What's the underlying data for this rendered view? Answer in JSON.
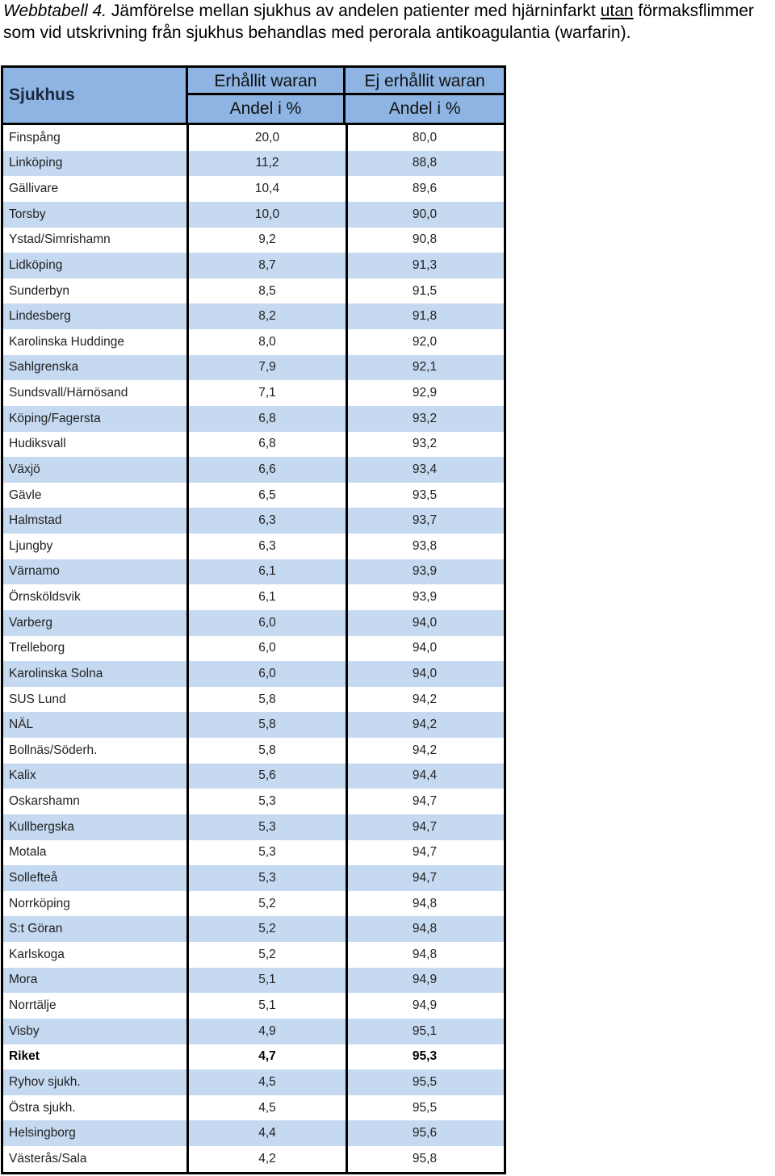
{
  "caption": {
    "prefix": "Webbtabell 4.",
    "part1": " Jämförelse mellan sjukhus av andelen patienter med hjärninfarkt ",
    "underlined": "utan",
    "part2": " förmaksflimmer som vid utskrivning från sjukhus behandlas med perorala antikoagulantia (warfarin)."
  },
  "table": {
    "col1_header": "Sjukhus",
    "col2_header": "Erhållit waran",
    "col3_header": "Ej erhållit waran",
    "col2_sub": "Andel i %",
    "col3_sub": "Andel i %",
    "rows": [
      {
        "name": "Finspång",
        "a": "20,0",
        "b": "80,0"
      },
      {
        "name": "Linköping",
        "a": "11,2",
        "b": "88,8"
      },
      {
        "name": "Gällivare",
        "a": "10,4",
        "b": "89,6"
      },
      {
        "name": "Torsby",
        "a": "10,0",
        "b": "90,0"
      },
      {
        "name": "Ystad/Simrishamn",
        "a": "9,2",
        "b": "90,8"
      },
      {
        "name": "Lidköping",
        "a": "8,7",
        "b": "91,3"
      },
      {
        "name": "Sunderbyn",
        "a": "8,5",
        "b": "91,5"
      },
      {
        "name": "Lindesberg",
        "a": "8,2",
        "b": "91,8"
      },
      {
        "name": "Karolinska Huddinge",
        "a": "8,0",
        "b": "92,0"
      },
      {
        "name": "Sahlgrenska",
        "a": "7,9",
        "b": "92,1"
      },
      {
        "name": "Sundsvall/Härnösand",
        "a": "7,1",
        "b": "92,9"
      },
      {
        "name": "Köping/Fagersta",
        "a": "6,8",
        "b": "93,2"
      },
      {
        "name": "Hudiksvall",
        "a": "6,8",
        "b": "93,2"
      },
      {
        "name": "Växjö",
        "a": "6,6",
        "b": "93,4"
      },
      {
        "name": "Gävle",
        "a": "6,5",
        "b": "93,5"
      },
      {
        "name": "Halmstad",
        "a": "6,3",
        "b": "93,7"
      },
      {
        "name": "Ljungby",
        "a": "6,3",
        "b": "93,8"
      },
      {
        "name": "Värnamo",
        "a": "6,1",
        "b": "93,9"
      },
      {
        "name": "Örnsköldsvik",
        "a": "6,1",
        "b": "93,9"
      },
      {
        "name": "Varberg",
        "a": "6,0",
        "b": "94,0"
      },
      {
        "name": "Trelleborg",
        "a": "6,0",
        "b": "94,0"
      },
      {
        "name": "Karolinska Solna",
        "a": "6,0",
        "b": "94,0"
      },
      {
        "name": "SUS Lund",
        "a": "5,8",
        "b": "94,2"
      },
      {
        "name": "NÄL",
        "a": "5,8",
        "b": "94,2"
      },
      {
        "name": "Bollnäs/Söderh.",
        "a": "5,8",
        "b": "94,2"
      },
      {
        "name": "Kalix",
        "a": "5,6",
        "b": "94,4"
      },
      {
        "name": "Oskarshamn",
        "a": "5,3",
        "b": "94,7"
      },
      {
        "name": "Kullbergska",
        "a": "5,3",
        "b": "94,7"
      },
      {
        "name": "Motala",
        "a": "5,3",
        "b": "94,7"
      },
      {
        "name": "Sollefteå",
        "a": "5,3",
        "b": "94,7"
      },
      {
        "name": "Norrköping",
        "a": "5,2",
        "b": "94,8"
      },
      {
        "name": "S:t Göran",
        "a": "5,2",
        "b": "94,8"
      },
      {
        "name": "Karlskoga",
        "a": "5,2",
        "b": "94,8"
      },
      {
        "name": "Mora",
        "a": "5,1",
        "b": "94,9"
      },
      {
        "name": "Norrtälje",
        "a": "5,1",
        "b": "94,9"
      },
      {
        "name": "Visby",
        "a": "4,9",
        "b": "95,1"
      },
      {
        "name": "Riket",
        "a": "4,7",
        "b": "95,3",
        "bold": true
      },
      {
        "name": "Ryhov sjukh.",
        "a": "4,5",
        "b": "95,5"
      },
      {
        "name": "Östra sjukh.",
        "a": "4,5",
        "b": "95,5"
      },
      {
        "name": "Helsingborg",
        "a": "4,4",
        "b": "95,6"
      },
      {
        "name": "Västerås/Sala",
        "a": "4,2",
        "b": "95,8"
      }
    ]
  }
}
